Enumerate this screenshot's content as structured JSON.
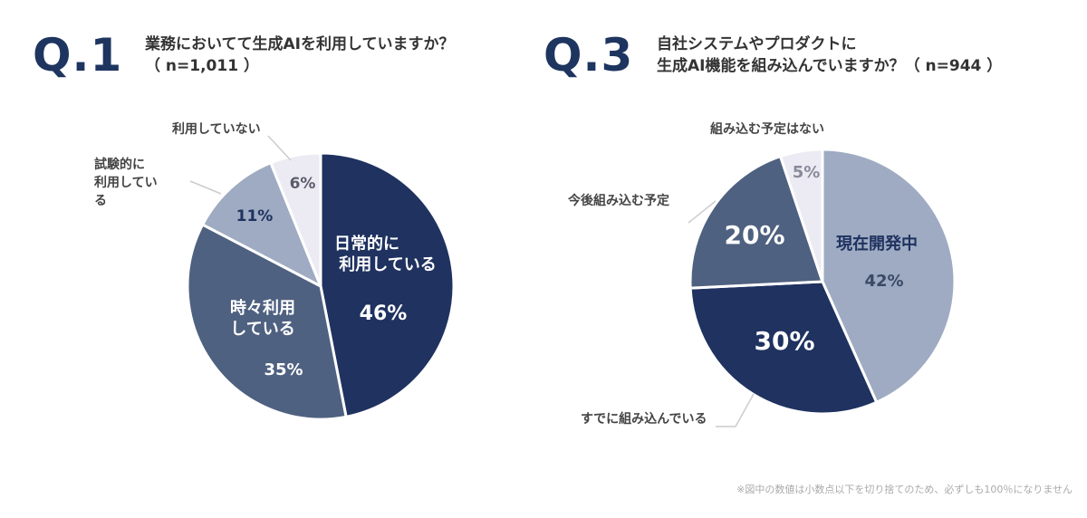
{
  "footnote": "※図中の数値は小数点以下を切り捨てのため、必ずしも100％になりません",
  "colors": {
    "navy": "#1f3260",
    "slate": "#4f6180",
    "grayblue": "#9eabc2",
    "lavender": "#ecebf3",
    "title": "#1e3560"
  },
  "chart_data": [
    {
      "type": "pie",
      "label": "Q.1",
      "title": [
        "業務においてて生成AIを利用していますか？",
        "（ n=1,011 ）"
      ],
      "slices": [
        {
          "name": "日常的に利用している",
          "value": 46,
          "label": "46%",
          "inside_text": [
            "日常的に",
            "利用している"
          ]
        },
        {
          "name": "時々利用している",
          "value": 35,
          "label": "35%",
          "inside_text": [
            "時々利用",
            "している"
          ]
        },
        {
          "name": "試験的に利用している",
          "value": 11,
          "label": "11%",
          "callout_text": [
            "試験的に",
            "利用してい",
            "る"
          ]
        },
        {
          "name": "利用していない",
          "value": 6,
          "label": "6%",
          "callout_text": [
            "利用していない"
          ]
        }
      ]
    },
    {
      "type": "pie",
      "label": "Q.3",
      "title": [
        "自社システムやプロダクトに",
        "生成AI機能を組み込んでいますか？（ n=944 ）"
      ],
      "slices": [
        {
          "name": "現在開発中",
          "value": 42,
          "label": "42%",
          "inside_text": [
            "現在開発中"
          ]
        },
        {
          "name": "すでに組み込んでいる",
          "value": 30,
          "label": "30%",
          "callout_text": [
            "すでに組み込んでいる"
          ]
        },
        {
          "name": "今後組み込む予定",
          "value": 20,
          "label": "20%",
          "callout_text": [
            "今後組み込む予定"
          ]
        },
        {
          "name": "組み込む予定はない",
          "value": 5,
          "label": "5%",
          "callout_text": [
            "組み込む予定はない"
          ]
        }
      ]
    }
  ]
}
